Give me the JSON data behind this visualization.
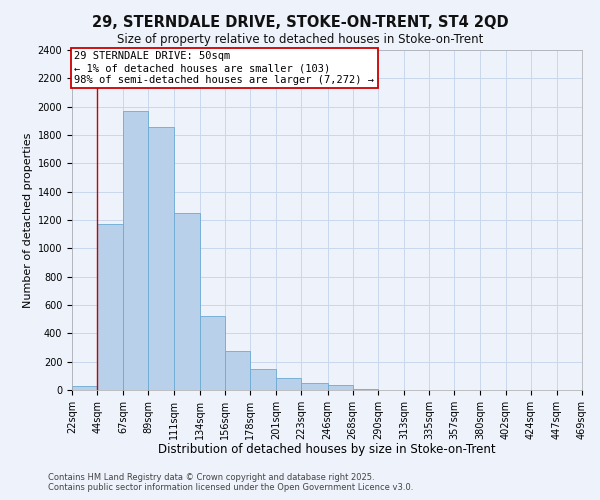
{
  "title": "29, STERNDALE DRIVE, STOKE-ON-TRENT, ST4 2QD",
  "subtitle": "Size of property relative to detached houses in Stoke-on-Trent",
  "xlabel": "Distribution of detached houses by size in Stoke-on-Trent",
  "ylabel": "Number of detached properties",
  "bar_values": [
    25,
    1170,
    1970,
    1860,
    1250,
    520,
    275,
    150,
    85,
    50,
    35,
    5,
    2,
    1,
    0,
    0,
    0,
    0,
    0,
    0
  ],
  "bin_edges": [
    22,
    44,
    67,
    89,
    111,
    134,
    156,
    178,
    201,
    223,
    246,
    268,
    290,
    313,
    335,
    357,
    380,
    402,
    424,
    447,
    469
  ],
  "tick_labels": [
    "22sqm",
    "44sqm",
    "67sqm",
    "89sqm",
    "111sqm",
    "134sqm",
    "156sqm",
    "178sqm",
    "201sqm",
    "223sqm",
    "246sqm",
    "268sqm",
    "290sqm",
    "313sqm",
    "335sqm",
    "357sqm",
    "380sqm",
    "402sqm",
    "424sqm",
    "447sqm",
    "469sqm"
  ],
  "bar_color": "#b8d0ea",
  "bar_edge_color": "#6aaad4",
  "grid_color": "#c8d8ec",
  "background_color": "#edf2fb",
  "vline_x": 44,
  "vline_color": "#cc0000",
  "annotation_title": "29 STERNDALE DRIVE: 50sqm",
  "annotation_line1": "← 1% of detached houses are smaller (103)",
  "annotation_line2": "98% of semi-detached houses are larger (7,272) →",
  "annotation_box_color": "#ffffff",
  "annotation_box_edge": "#cc0000",
  "ylim": [
    0,
    2400
  ],
  "yticks": [
    0,
    200,
    400,
    600,
    800,
    1000,
    1200,
    1400,
    1600,
    1800,
    2000,
    2200,
    2400
  ],
  "footer1": "Contains HM Land Registry data © Crown copyright and database right 2025.",
  "footer2": "Contains public sector information licensed under the Open Government Licence v3.0.",
  "title_fontsize": 10.5,
  "subtitle_fontsize": 8.5,
  "xlabel_fontsize": 8.5,
  "ylabel_fontsize": 8,
  "tick_fontsize": 7,
  "annotation_fontsize": 7.5,
  "footer_fontsize": 6
}
